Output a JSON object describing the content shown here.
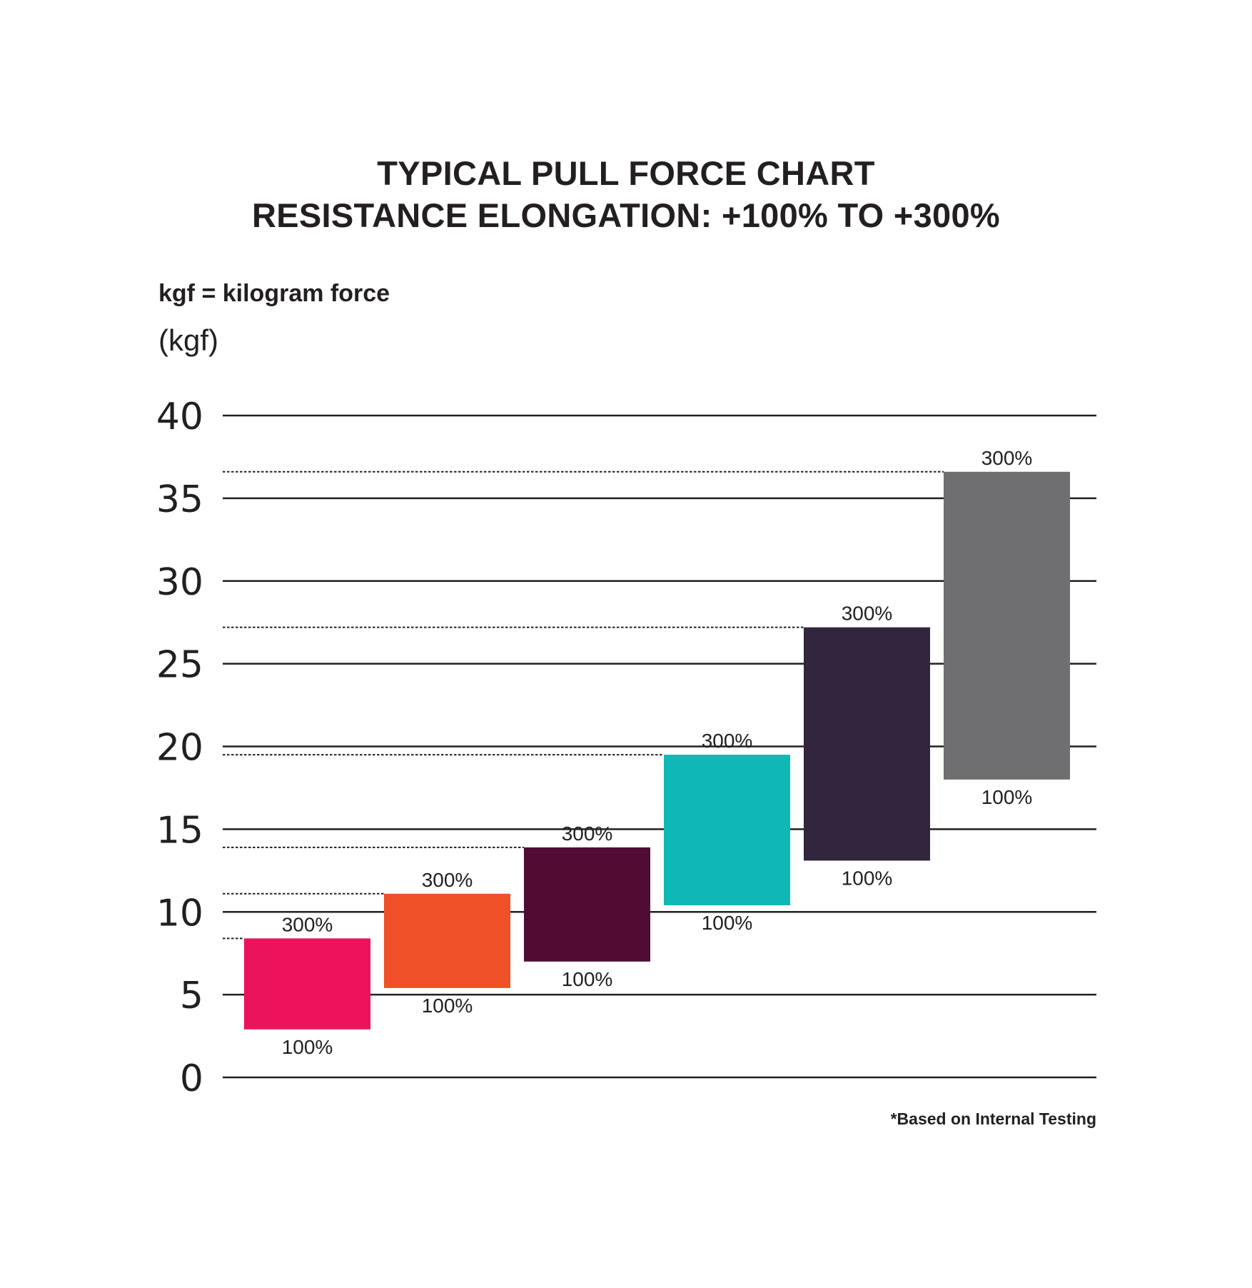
{
  "title_lines": [
    "TYPICAL PULL FORCE CHART",
    "RESISTANCE ELONGATION: +100% TO +300%"
  ],
  "note": "kgf = kilogram force",
  "unit_label": "(kgf)",
  "footnote": "*Based on Internal Testing",
  "chart_data": {
    "type": "bar",
    "subtype": "floating-range",
    "ylim": [
      0,
      40
    ],
    "yticks": [
      0,
      5,
      10,
      15,
      20,
      25,
      30,
      35,
      40
    ],
    "grid": true,
    "low_label": "100%",
    "high_label": "300%",
    "bars": [
      {
        "low": 2.9,
        "high": 8.4,
        "color": "#ec135d"
      },
      {
        "low": 5.4,
        "high": 11.1,
        "color": "#ef5026"
      },
      {
        "low": 7.0,
        "high": 13.9,
        "color": "#500c33"
      },
      {
        "low": 10.4,
        "high": 19.5,
        "color": "#10b8b5"
      },
      {
        "low": 13.1,
        "high": 27.2,
        "color": "#32253e"
      },
      {
        "low": 18.0,
        "high": 36.6,
        "color": "#6f6f71"
      }
    ]
  }
}
